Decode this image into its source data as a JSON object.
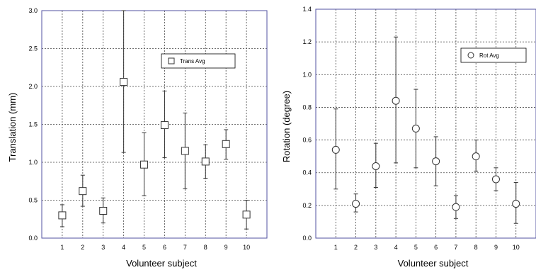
{
  "chart_data": [
    {
      "type": "scatter",
      "error_bars": true,
      "x": [
        1,
        2,
        3,
        4,
        5,
        6,
        7,
        8,
        9,
        10
      ],
      "xticks": [
        "1",
        "2",
        "3",
        "4",
        "5",
        "6",
        "7",
        "8",
        "9",
        "10"
      ],
      "xlim": [
        0,
        11
      ],
      "ylim": [
        0,
        3.0
      ],
      "yticks": [
        "0.0",
        "0.5",
        "1.0",
        "1.5",
        "2.0",
        "2.5",
        "3.0"
      ],
      "xlabel": "Volunteer subject",
      "ylabel": "Translation (mm)",
      "grid": true,
      "legend_position": "upper-right",
      "marker": "square",
      "series": [
        {
          "name": "Trans Avg",
          "values": [
            0.3,
            0.62,
            0.36,
            2.06,
            0.97,
            1.49,
            1.15,
            1.01,
            1.24,
            0.31
          ],
          "err_low": [
            0.15,
            0.42,
            0.2,
            1.13,
            0.56,
            1.06,
            0.65,
            0.79,
            1.04,
            0.12
          ],
          "err_high": [
            0.44,
            0.83,
            0.53,
            3.0,
            1.39,
            1.94,
            1.65,
            1.23,
            1.43,
            0.5
          ]
        }
      ]
    },
    {
      "type": "scatter",
      "error_bars": true,
      "x": [
        1,
        2,
        3,
        4,
        5,
        6,
        7,
        8,
        9,
        10
      ],
      "xticks": [
        "1",
        "2",
        "3",
        "4",
        "5",
        "6",
        "7",
        "8",
        "9",
        "10"
      ],
      "xlim": [
        0,
        11
      ],
      "ylim": [
        0,
        1.4
      ],
      "yticks": [
        "0.0",
        "0.2",
        "0.4",
        "0.6",
        "0.8",
        "1.0",
        "1.2",
        "1.4"
      ],
      "xlabel": "Volunteer subject",
      "ylabel": "Rotation (degree)",
      "grid": true,
      "legend_position": "upper-right",
      "marker": "circle",
      "series": [
        {
          "name": "Rot Avg",
          "values": [
            0.54,
            0.21,
            0.44,
            0.84,
            0.67,
            0.47,
            0.19,
            0.5,
            0.36,
            0.21
          ],
          "err_low": [
            0.3,
            0.16,
            0.31,
            0.46,
            0.43,
            0.32,
            0.12,
            0.41,
            0.29,
            0.09
          ],
          "err_high": [
            0.79,
            0.27,
            0.58,
            1.23,
            0.91,
            0.62,
            0.26,
            0.6,
            0.43,
            0.34
          ]
        }
      ]
    }
  ],
  "colors": {
    "frame": "#5050a0",
    "grid": "#444444",
    "marker": "#333333",
    "errorbar": "#333333"
  }
}
